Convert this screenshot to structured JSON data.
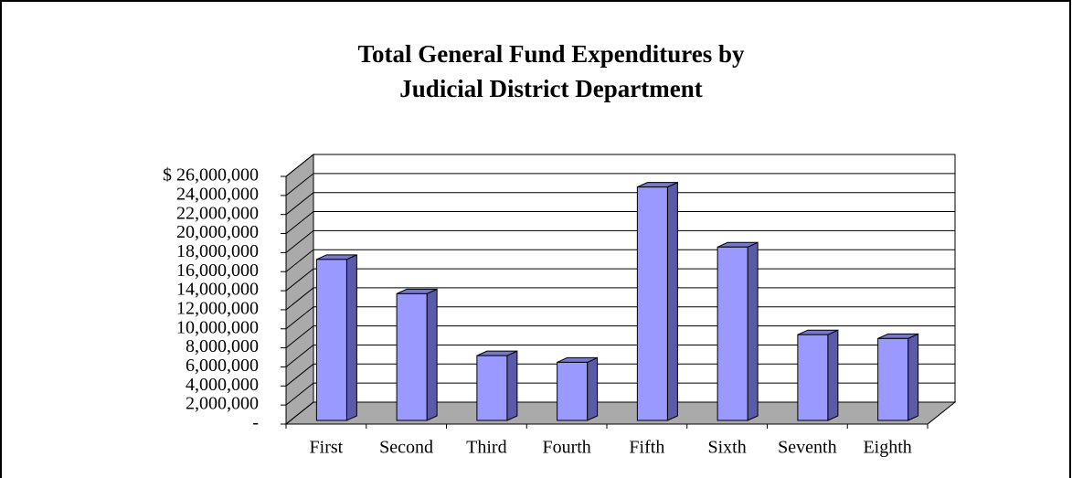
{
  "chart_data": {
    "type": "bar3d",
    "title": "Total General Fund Expenditures by",
    "subtitle": "Judicial District Department",
    "categories": [
      "First",
      "Second",
      "Third",
      "Fourth",
      "Fifth",
      "Sixth",
      "Seventh",
      "Eighth"
    ],
    "values": [
      16900000,
      13300000,
      6800000,
      6100000,
      24500000,
      18200000,
      9000000,
      8600000
    ],
    "color": "#9999ff",
    "ylim": [
      0,
      26000000
    ],
    "yticks": [
      {
        "value": 0,
        "label": "-"
      },
      {
        "value": 2000000,
        "label": "2,000,000"
      },
      {
        "value": 4000000,
        "label": "4,000,000"
      },
      {
        "value": 6000000,
        "label": "6,000,000"
      },
      {
        "value": 8000000,
        "label": "8,000,000"
      },
      {
        "value": 10000000,
        "label": "10,000,000"
      },
      {
        "value": 12000000,
        "label": "12,000,000"
      },
      {
        "value": 14000000,
        "label": "14,000,000"
      },
      {
        "value": 16000000,
        "label": "16,000,000"
      },
      {
        "value": 18000000,
        "label": "18,000,000"
      },
      {
        "value": 20000000,
        "label": "20,000,000"
      },
      {
        "value": 22000000,
        "label": "22,000,000"
      },
      {
        "value": 24000000,
        "label": "24,000,000"
      },
      {
        "value": 26000000,
        "label": "$ 26,000,000"
      }
    ],
    "grid": true
  }
}
